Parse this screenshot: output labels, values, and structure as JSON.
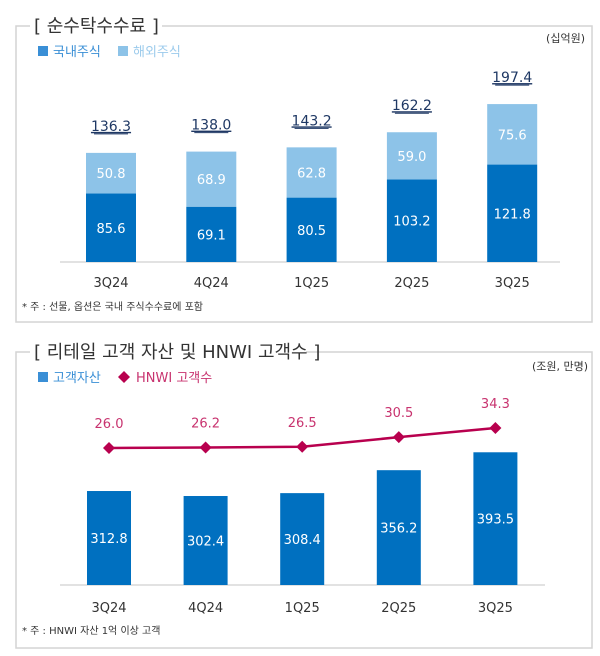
{
  "colors": {
    "domestic": "#0070c0",
    "overseas": "#8dc3e8",
    "assets": "#0070c0",
    "hnwi": "#b8004e",
    "panel_border": "#d4d4d4"
  },
  "chart_data": [
    {
      "type": "bar",
      "stacked": true,
      "title": "[ 순수탁수수료 ]",
      "unit": "(십억원)",
      "categories": [
        "3Q24",
        "4Q24",
        "1Q25",
        "2Q25",
        "3Q25"
      ],
      "series": [
        {
          "name": "국내주식",
          "values": [
            85.6,
            69.1,
            80.5,
            103.2,
            121.8
          ]
        },
        {
          "name": "해외주식",
          "values": [
            50.8,
            68.9,
            62.8,
            59.0,
            75.6
          ]
        }
      ],
      "totals": [
        "136.3",
        "138.0",
        "143.2",
        "162.2",
        "197.4"
      ],
      "ylim": [
        0,
        200
      ],
      "legend": "top-left",
      "grid": false,
      "note": "* 주 : 선물, 옵션은 국내 주식수수료에 포함"
    },
    {
      "type": "bar+line",
      "title": "[ 리테일 고객 자산 및 HNWI 고객수 ]",
      "unit": "(조원, 만명)",
      "categories": [
        "3Q24",
        "4Q24",
        "1Q25",
        "2Q25",
        "3Q25"
      ],
      "series": [
        {
          "name": "고객자산",
          "type": "bar",
          "values": [
            312.8,
            302.4,
            308.4,
            356.2,
            393.5
          ]
        },
        {
          "name": "HNWI 고객수",
          "type": "line",
          "values": [
            26.0,
            26.2,
            26.5,
            30.5,
            34.3
          ]
        }
      ],
      "legend": "top-left",
      "grid": false,
      "note": "* 주 : HNWI 자산 1억 이상 고객"
    }
  ]
}
